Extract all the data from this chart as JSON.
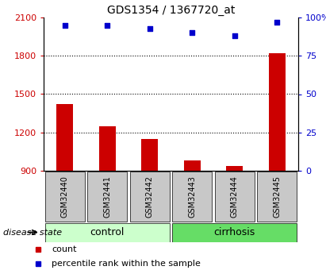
{
  "title": "GDS1354 / 1367720_at",
  "samples": [
    "GSM32440",
    "GSM32441",
    "GSM32442",
    "GSM32443",
    "GSM32444",
    "GSM32445"
  ],
  "counts": [
    1420,
    1250,
    1150,
    980,
    940,
    1820
  ],
  "percentiles": [
    95,
    95,
    93,
    90,
    88,
    97
  ],
  "ylim_left": [
    900,
    2100
  ],
  "ylim_right": [
    0,
    100
  ],
  "yticks_left": [
    900,
    1200,
    1500,
    1800,
    2100
  ],
  "yticks_right": [
    0,
    25,
    50,
    75,
    100
  ],
  "ytick_labels_right": [
    "0",
    "25",
    "50",
    "75",
    "100%"
  ],
  "bar_color": "#cc0000",
  "scatter_color": "#0000cc",
  "groups": [
    {
      "label": "control",
      "indices": [
        0,
        1,
        2
      ],
      "color": "#ccffcc"
    },
    {
      "label": "cirrhosis",
      "indices": [
        3,
        4,
        5
      ],
      "color": "#66dd66"
    }
  ],
  "disease_state_label": "disease state",
  "legend_items": [
    {
      "color": "#cc0000",
      "label": "count"
    },
    {
      "color": "#0000cc",
      "label": "percentile rank within the sample"
    }
  ],
  "sample_box_color": "#c8c8c8",
  "bar_width": 0.4,
  "figsize": [
    4.11,
    3.45
  ],
  "dpi": 100
}
